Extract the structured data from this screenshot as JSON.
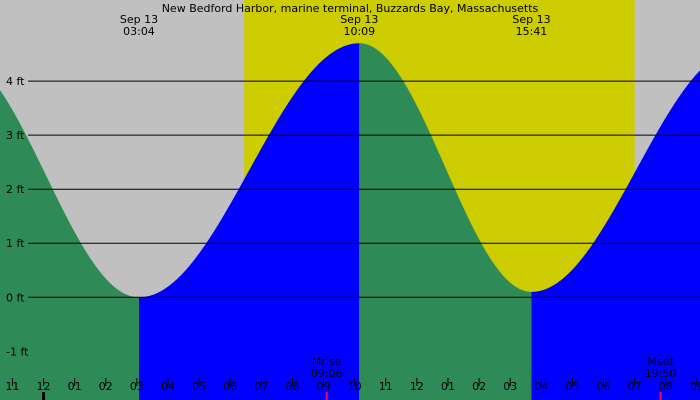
{
  "chart_data": {
    "type": "area",
    "title": "New Bedford Harbor, marine terminal, Buzzards Bay, Massachusetts",
    "y_unit": "ft",
    "ylim": [
      -1.9,
      5.5
    ],
    "y_ticks": [
      {
        "value": 4,
        "label": "4 ft"
      },
      {
        "value": 3,
        "label": "3 ft"
      },
      {
        "value": 2,
        "label": "2 ft"
      },
      {
        "value": 1,
        "label": "1 ft"
      },
      {
        "value": 0,
        "label": "0 ft"
      },
      {
        "value": -1,
        "label": "-1 ft"
      }
    ],
    "x_axis_hours_range": [
      -1.4,
      21.1
    ],
    "x_ticks": [
      {
        "hour": -1,
        "label": "11"
      },
      {
        "hour": 0,
        "label": "12"
      },
      {
        "hour": 1,
        "label": "01"
      },
      {
        "hour": 2,
        "label": "02"
      },
      {
        "hour": 3,
        "label": "03"
      },
      {
        "hour": 4,
        "label": "04"
      },
      {
        "hour": 5,
        "label": "05"
      },
      {
        "hour": 6,
        "label": "06"
      },
      {
        "hour": 7,
        "label": "07"
      },
      {
        "hour": 8,
        "label": "08"
      },
      {
        "hour": 9,
        "label": "09"
      },
      {
        "hour": 10,
        "label": "10"
      },
      {
        "hour": 11,
        "label": "11"
      },
      {
        "hour": 12,
        "label": "12"
      },
      {
        "hour": 13,
        "label": "01"
      },
      {
        "hour": 14,
        "label": "02"
      },
      {
        "hour": 15,
        "label": "03"
      },
      {
        "hour": 16,
        "label": "04"
      },
      {
        "hour": 17,
        "label": "05"
      },
      {
        "hour": 18,
        "label": "06"
      },
      {
        "hour": 19,
        "label": "07"
      },
      {
        "hour": 20,
        "label": "08"
      },
      {
        "hour": 21,
        "label": "09"
      }
    ],
    "daylight_hours": [
      6.45,
      19.0
    ],
    "tide_extremes": [
      {
        "hour": -2.9,
        "height": 4.5,
        "kind": "high"
      },
      {
        "hour": 3.067,
        "height": 0.0,
        "kind": "low"
      },
      {
        "hour": 10.15,
        "height": 4.7,
        "kind": "high"
      },
      {
        "hour": 15.683,
        "height": 0.1,
        "kind": "low"
      },
      {
        "hour": 22.4,
        "height": 4.6,
        "kind": "high"
      }
    ],
    "annotations": [
      {
        "date": "Sep 13",
        "time": "03:04",
        "hour": 3.067
      },
      {
        "date": "Sep 13",
        "time": "10:09",
        "hour": 10.15
      },
      {
        "date": "Sep 13",
        "time": "15:41",
        "hour": 15.683
      }
    ],
    "moon_events": [
      {
        "label": "Mrise",
        "time": "09:06",
        "hour": 9.1
      },
      {
        "label": "Mset",
        "time": "19:50",
        "hour": 19.833
      }
    ],
    "colors": {
      "night": "#c0c0c0",
      "day": "#cccc00",
      "rising": "#0000ff",
      "falling": "#2e8b57",
      "grid": "#000000",
      "moon_tick": "#ff0066"
    }
  }
}
